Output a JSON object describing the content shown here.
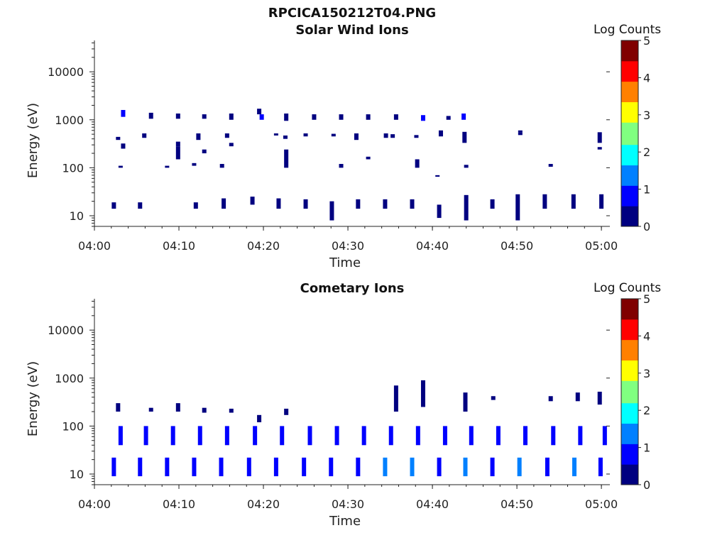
{
  "figure": {
    "title": "RPCICA150212T04.PNG"
  },
  "colors": {
    "colormap": [
      "#000080",
      "#0000ff",
      "#0080ff",
      "#00ffff",
      "#80ff80",
      "#ffff00",
      "#ff8000",
      "#ff0000",
      "#800000"
    ],
    "axis": "#222222"
  },
  "chart_data": [
    {
      "type": "heatmap",
      "title": "Solar Wind Ions",
      "xlabel": "Time",
      "ylabel": "Energy (eV)",
      "xticks": [
        "04:00",
        "04:10",
        "04:20",
        "04:30",
        "04:40",
        "04:50",
        "05:00"
      ],
      "xlim_minutes": [
        0,
        61
      ],
      "yscale": "log",
      "yticks": [
        "10",
        "100",
        "1000",
        "10000"
      ],
      "ylim": [
        6,
        45000
      ],
      "colorbar": {
        "label": "Log Counts",
        "ticks": [
          "0",
          "1",
          "2",
          "3",
          "4",
          "5"
        ],
        "range": [
          0,
          5
        ]
      },
      "cells": [
        [
          2.3,
          14,
          19,
          0.1
        ],
        [
          3.4,
          1150,
          1600,
          0.7
        ],
        [
          6.7,
          1050,
          1400,
          0.5
        ],
        [
          9.9,
          1050,
          1350,
          0.4
        ],
        [
          13.0,
          1050,
          1300,
          0.3
        ],
        [
          16.2,
          1000,
          1350,
          0.4
        ],
        [
          19.5,
          1300,
          1700,
          0.5
        ],
        [
          19.8,
          1000,
          1300,
          0.9
        ],
        [
          22.7,
          950,
          1350,
          0.4
        ],
        [
          26.0,
          1000,
          1300,
          0.4
        ],
        [
          29.2,
          1000,
          1300,
          0.5
        ],
        [
          32.4,
          1000,
          1300,
          0.4
        ],
        [
          35.7,
          1000,
          1300,
          0.5
        ],
        [
          38.9,
          950,
          1250,
          0.6
        ],
        [
          41.9,
          1000,
          1200,
          0.3
        ],
        [
          43.7,
          1000,
          1350,
          0.8
        ],
        [
          2.8,
          380,
          440,
          0.2
        ],
        [
          3.4,
          250,
          320,
          0.3
        ],
        [
          5.9,
          420,
          520,
          0.2
        ],
        [
          9.9,
          280,
          350,
          0.2
        ],
        [
          12.3,
          380,
          520,
          0.2
        ],
        [
          15.7,
          420,
          520,
          0.2
        ],
        [
          21.5,
          470,
          520,
          0.2
        ],
        [
          22.6,
          400,
          470,
          0.2
        ],
        [
          25.0,
          450,
          520,
          0.2
        ],
        [
          28.3,
          450,
          510,
          0.2
        ],
        [
          31.0,
          380,
          520,
          0.2
        ],
        [
          34.5,
          420,
          520,
          0.2
        ],
        [
          35.3,
          420,
          500,
          0.2
        ],
        [
          38.1,
          420,
          480,
          0.3
        ],
        [
          41.0,
          450,
          600,
          0.3
        ],
        [
          43.8,
          330,
          560,
          0.5
        ],
        [
          50.4,
          480,
          540,
          0.2
        ],
        [
          50.4,
          540,
          600,
          0.2
        ],
        [
          59.8,
          330,
          550,
          0.5
        ],
        [
          59.8,
          240,
          270,
          0.2
        ],
        [
          22.7,
          100,
          240,
          0.2
        ],
        [
          9.9,
          150,
          280,
          0.2
        ],
        [
          13.0,
          200,
          240,
          0.2
        ],
        [
          16.2,
          280,
          330,
          0.2
        ],
        [
          29.2,
          100,
          120,
          0.2
        ],
        [
          32.4,
          150,
          170,
          0.2
        ],
        [
          38.2,
          100,
          150,
          0.3
        ],
        [
          44.0,
          100,
          115,
          0.2
        ],
        [
          54.0,
          105,
          120,
          0.2
        ],
        [
          3.1,
          100,
          110,
          0.2
        ],
        [
          8.6,
          100,
          110,
          0.2
        ],
        [
          11.8,
          110,
          125,
          0.2
        ],
        [
          15.1,
          100,
          120,
          0.2
        ],
        [
          40.6,
          65,
          70,
          0.3
        ],
        [
          5.4,
          14,
          19,
          0.1
        ],
        [
          12.0,
          14,
          19,
          0.1
        ],
        [
          15.3,
          14,
          23,
          0.2
        ],
        [
          18.7,
          17,
          25,
          0.2
        ],
        [
          21.8,
          14,
          23,
          0.2
        ],
        [
          25.0,
          14,
          22,
          0.2
        ],
        [
          28.1,
          8,
          20,
          0.2
        ],
        [
          31.2,
          14,
          22,
          0.2
        ],
        [
          34.4,
          14,
          22,
          0.2
        ],
        [
          37.6,
          14,
          22,
          0.2
        ],
        [
          40.8,
          9,
          17,
          0.2
        ],
        [
          44.0,
          8,
          27,
          0.3
        ],
        [
          47.1,
          14,
          22,
          0.2
        ],
        [
          50.1,
          8,
          28,
          0.3
        ],
        [
          53.3,
          14,
          28,
          0.3
        ],
        [
          56.7,
          14,
          28,
          0.3
        ],
        [
          60.0,
          14,
          28,
          0.3
        ]
      ]
    },
    {
      "type": "heatmap",
      "title": "Cometary Ions",
      "xlabel": "Time",
      "ylabel": "Energy (eV)",
      "xticks": [
        "04:00",
        "04:10",
        "04:20",
        "04:30",
        "04:40",
        "04:50",
        "05:00"
      ],
      "xlim_minutes": [
        0,
        61
      ],
      "yscale": "log",
      "yticks": [
        "10",
        "100",
        "1000",
        "10000"
      ],
      "ylim": [
        6,
        45000
      ],
      "colorbar": {
        "label": "Log Counts",
        "ticks": [
          "0",
          "1",
          "2",
          "3",
          "4",
          "5"
        ],
        "range": [
          0,
          5
        ]
      },
      "cells": [
        [
          2.3,
          9,
          22,
          0.9
        ],
        [
          3.1,
          40,
          100,
          0.8
        ],
        [
          5.4,
          9,
          22,
          0.9
        ],
        [
          6.1,
          40,
          100,
          0.8
        ],
        [
          8.6,
          9,
          22,
          0.8
        ],
        [
          9.3,
          40,
          100,
          0.8
        ],
        [
          11.8,
          9,
          22,
          1.1
        ],
        [
          12.5,
          40,
          100,
          0.8
        ],
        [
          15.0,
          9,
          22,
          0.9
        ],
        [
          15.7,
          40,
          100,
          0.8
        ],
        [
          18.3,
          9,
          22,
          1.1
        ],
        [
          19.0,
          40,
          100,
          0.8
        ],
        [
          21.5,
          9,
          22,
          0.8
        ],
        [
          22.2,
          40,
          100,
          0.8
        ],
        [
          24.8,
          9,
          22,
          1.1
        ],
        [
          25.5,
          40,
          100,
          0.8
        ],
        [
          28.0,
          9,
          22,
          0.9
        ],
        [
          28.7,
          40,
          100,
          0.8
        ],
        [
          31.2,
          9,
          22,
          0.9
        ],
        [
          31.9,
          40,
          100,
          0.8
        ],
        [
          34.4,
          9,
          22,
          1.2
        ],
        [
          35.1,
          40,
          100,
          1.0
        ],
        [
          37.6,
          9,
          22,
          1.3
        ],
        [
          38.3,
          40,
          100,
          1.0
        ],
        [
          40.8,
          9,
          22,
          0.8
        ],
        [
          41.5,
          40,
          100,
          0.8
        ],
        [
          43.9,
          9,
          22,
          1.6
        ],
        [
          44.6,
          40,
          100,
          1.0
        ],
        [
          47.1,
          9,
          22,
          0.9
        ],
        [
          47.8,
          40,
          100,
          0.8
        ],
        [
          50.3,
          9,
          22,
          1.2
        ],
        [
          51.0,
          40,
          100,
          0.9
        ],
        [
          53.6,
          9,
          22,
          1.0
        ],
        [
          54.3,
          40,
          100,
          0.9
        ],
        [
          56.8,
          9,
          22,
          1.3
        ],
        [
          57.5,
          40,
          100,
          0.9
        ],
        [
          59.9,
          9,
          22,
          0.9
        ],
        [
          60.4,
          40,
          100,
          0.8
        ],
        [
          2.8,
          200,
          300,
          0.3
        ],
        [
          6.7,
          200,
          240,
          0.2
        ],
        [
          9.9,
          200,
          300,
          0.3
        ],
        [
          13.0,
          190,
          240,
          0.2
        ],
        [
          16.2,
          190,
          230,
          0.2
        ],
        [
          19.5,
          120,
          170,
          0.2
        ],
        [
          22.7,
          170,
          230,
          0.2
        ],
        [
          35.7,
          200,
          700,
          0.3
        ],
        [
          38.9,
          250,
          900,
          0.3
        ],
        [
          43.9,
          200,
          500,
          0.3
        ],
        [
          47.2,
          350,
          420,
          0.2
        ],
        [
          54.0,
          330,
          420,
          0.2
        ],
        [
          57.2,
          330,
          500,
          0.3
        ],
        [
          59.8,
          280,
          520,
          0.3
        ]
      ]
    }
  ]
}
